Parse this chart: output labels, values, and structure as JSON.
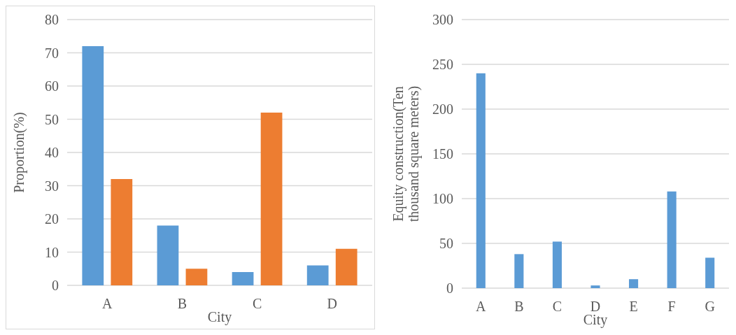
{
  "chart_data": [
    {
      "type": "bar",
      "categories": [
        "A",
        "B",
        "C",
        "D"
      ],
      "xlabel": "City",
      "ylabel": "Proportion(%)",
      "ylim": [
        0,
        80
      ],
      "yticks": [
        0,
        10,
        20,
        30,
        40,
        50,
        60,
        70,
        80
      ],
      "grid": "y",
      "series": [
        {
          "color": "#5b9bd5",
          "values": [
            72,
            18,
            4,
            6
          ]
        },
        {
          "color": "#ed7d31",
          "values": [
            32,
            5,
            52,
            11
          ]
        }
      ]
    },
    {
      "type": "bar",
      "categories": [
        "A",
        "B",
        "C",
        "D",
        "E",
        "F",
        "G"
      ],
      "xlabel": "City",
      "ylabel": "Equity construction(Ten thousand square meters)",
      "ylim": [
        0,
        300
      ],
      "yticks": [
        0,
        50,
        100,
        150,
        200,
        250,
        300
      ],
      "grid": "y",
      "series": [
        {
          "color": "#5b9bd5",
          "values": [
            240,
            38,
            52,
            3,
            10,
            108,
            34
          ]
        }
      ]
    }
  ]
}
